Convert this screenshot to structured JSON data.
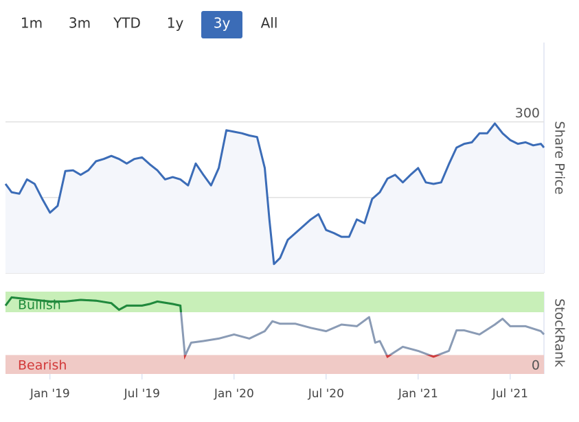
{
  "range_buttons": {
    "items": [
      "1m",
      "3m",
      "YTD",
      "1y",
      "3y",
      "All"
    ],
    "active": 4
  },
  "chart_data": [
    {
      "type": "line",
      "y_label": "Share Price",
      "color": "#3b6cb7",
      "area_color": "#f4f6fb",
      "xlim": [
        -2.9,
        32.2
      ],
      "ylim": [
        100,
        405
      ],
      "yticks": [
        100,
        200,
        300
      ],
      "grid": true,
      "x": [
        -2.9,
        -2.5,
        -2,
        -1.5,
        -1,
        -0.5,
        0,
        0.5,
        1,
        1.5,
        2,
        2.5,
        3,
        3.5,
        4,
        4.5,
        5,
        5.5,
        6,
        6.5,
        7,
        7.5,
        8,
        8.5,
        9,
        9.5,
        10,
        10.5,
        11,
        11.5,
        12,
        12.5,
        13,
        13.5,
        14,
        14.3,
        14.6,
        15,
        15.5,
        16,
        16.5,
        17,
        17.5,
        18,
        18.5,
        19,
        19.5,
        20,
        20.5,
        21,
        21.5,
        22,
        22.5,
        23,
        23.5,
        24,
        24.5,
        25,
        25.5,
        26,
        26.5,
        27,
        27.5,
        28,
        28.5,
        29,
        29.5,
        30,
        30.5,
        31,
        31.5,
        32,
        32.2
      ],
      "values": [
        218,
        207,
        205,
        224,
        218,
        198,
        180,
        189,
        235,
        236,
        230,
        236,
        248,
        251,
        255,
        251,
        245,
        251,
        253,
        244,
        236,
        224,
        227,
        224,
        216,
        245,
        230,
        216,
        239,
        289,
        287,
        285,
        282,
        280,
        239,
        171,
        112,
        120,
        144,
        153,
        162,
        171,
        178,
        157,
        153,
        148,
        148,
        171,
        166,
        198,
        207,
        225,
        230,
        220,
        230,
        239,
        220,
        218,
        220,
        244,
        266,
        271,
        273,
        285,
        285,
        298,
        285,
        276,
        271,
        273,
        269,
        271,
        266
      ]
    },
    {
      "type": "line",
      "y_label": "StockRank",
      "color": "#8a9bb5",
      "xlim": [
        -2.9,
        32.2
      ],
      "ylim": [
        0,
        100
      ],
      "yticks": [
        0
      ],
      "xticks": [
        {
          "value": 0,
          "label": "Jan '19"
        },
        {
          "value": 6,
          "label": "Jul '19"
        },
        {
          "value": 12,
          "label": "Jan '20"
        },
        {
          "value": 18,
          "label": "Jul '20"
        },
        {
          "value": 24,
          "label": "Jan '21"
        },
        {
          "value": 30,
          "label": "Jul '21"
        }
      ],
      "bands": [
        {
          "label": "Bullish",
          "from": 75,
          "to": 100,
          "color": "#c8efb8",
          "line_color": "#1f8a3a",
          "text_color": "#1f8a3a"
        },
        {
          "label": "Bearish",
          "from": 0,
          "to": 23,
          "color": "#f0cac6",
          "line_color": "#d23a3a",
          "text_color": "#d23a3a"
        }
      ],
      "x": [
        -2.9,
        -2.5,
        -1,
        0,
        1,
        2,
        3,
        4,
        4.5,
        5,
        6,
        6.5,
        7,
        8,
        8.5,
        8.8,
        9.2,
        10,
        11,
        12,
        13,
        14,
        14.5,
        15,
        16,
        17,
        18,
        19,
        20,
        20.8,
        21.2,
        21.5,
        22,
        23,
        24,
        25,
        26,
        26.5,
        27,
        28,
        29,
        29.5,
        30,
        31,
        32,
        32.2
      ],
      "values": [
        83,
        93,
        90,
        88,
        88,
        90,
        89,
        86,
        78,
        83,
        83,
        85,
        88,
        85,
        83,
        22,
        38,
        40,
        43,
        48,
        43,
        52,
        64,
        61,
        61,
        56,
        52,
        60,
        58,
        69,
        38,
        40,
        21,
        33,
        28,
        21,
        28,
        53,
        53,
        48,
        60,
        67,
        58,
        58,
        52,
        48
      ]
    }
  ]
}
